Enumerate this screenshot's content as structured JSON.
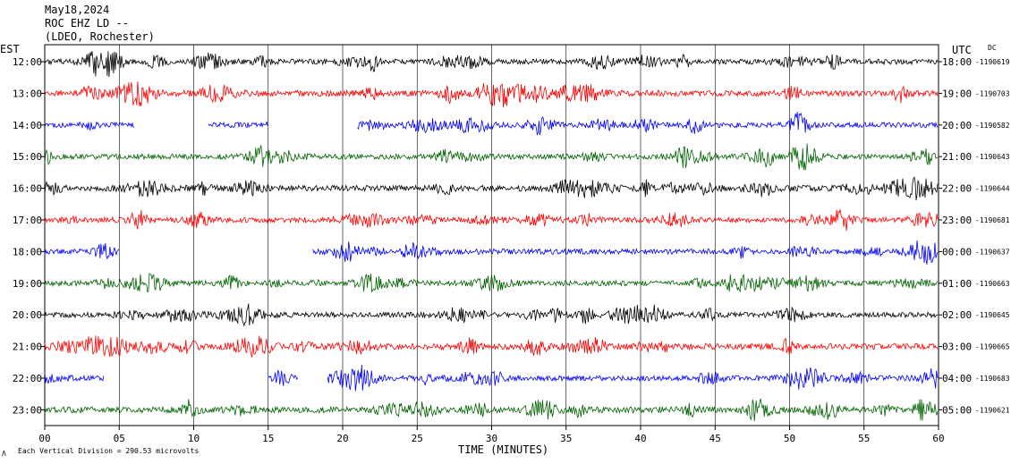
{
  "header": {
    "date": "May18,2024",
    "station": "ROC EHZ LD --",
    "network": "(LDEO, Rochester)"
  },
  "left_axis_title": "EST",
  "right_axis_title": "UTC",
  "dc_label": "DC",
  "footnote": "Each Vertical Division = 290.53 microvolts",
  "footnote_mark": "Λ",
  "colors": {
    "black": "#000000",
    "red": "#ff0000",
    "blue": "#0000ff",
    "green": "#006400"
  },
  "chart_data": {
    "type": "line",
    "xlabel": "TIME (MINUTES)",
    "xlim": [
      0,
      60
    ],
    "x_ticks": [
      "00",
      "05",
      "10",
      "15",
      "20",
      "25",
      "30",
      "35",
      "40",
      "45",
      "50",
      "55",
      "60"
    ],
    "grid": true,
    "rows": [
      {
        "est": "12:00",
        "utc": "18:00",
        "dc": "-1190619",
        "color": "#000000",
        "segments": [
          [
            0,
            60
          ]
        ],
        "amplitude": 0.7
      },
      {
        "est": "13:00",
        "utc": "19:00",
        "dc": "-1190703",
        "color": "#ff0000",
        "segments": [
          [
            0,
            60
          ]
        ],
        "amplitude": 0.8
      },
      {
        "est": "14:00",
        "utc": "20:00",
        "dc": "-1190582",
        "color": "#0000ff",
        "segments": [
          [
            0,
            6
          ],
          [
            11,
            15
          ],
          [
            21,
            60
          ]
        ],
        "amplitude": 0.7
      },
      {
        "est": "15:00",
        "utc": "21:00",
        "dc": "-1190643",
        "color": "#006400",
        "segments": [
          [
            0,
            60
          ]
        ],
        "amplitude": 0.7
      },
      {
        "est": "16:00",
        "utc": "22:00",
        "dc": "-1190644",
        "color": "#000000",
        "segments": [
          [
            0,
            60
          ]
        ],
        "amplitude": 0.8
      },
      {
        "est": "17:00",
        "utc": "23:00",
        "dc": "-1190681",
        "color": "#ff0000",
        "segments": [
          [
            0,
            60
          ]
        ],
        "amplitude": 0.7
      },
      {
        "est": "18:00",
        "utc": "00:00",
        "dc": "-1190637",
        "color": "#0000ff",
        "segments": [
          [
            0,
            5
          ],
          [
            18,
            60
          ]
        ],
        "amplitude": 0.7
      },
      {
        "est": "19:00",
        "utc": "01:00",
        "dc": "-1190663",
        "color": "#006400",
        "segments": [
          [
            0,
            60
          ]
        ],
        "amplitude": 0.7
      },
      {
        "est": "20:00",
        "utc": "02:00",
        "dc": "-1190645",
        "color": "#000000",
        "segments": [
          [
            0,
            60
          ]
        ],
        "amplitude": 0.7
      },
      {
        "est": "21:00",
        "utc": "03:00",
        "dc": "-1190665",
        "color": "#ff0000",
        "segments": [
          [
            0,
            60
          ]
        ],
        "amplitude": 0.8
      },
      {
        "est": "22:00",
        "utc": "04:00",
        "dc": "-1190683",
        "color": "#0000ff",
        "segments": [
          [
            0,
            4
          ],
          [
            15,
            17
          ],
          [
            19,
            60
          ]
        ],
        "amplitude": 0.7
      },
      {
        "est": "23:00",
        "utc": "05:00",
        "dc": "-1190621",
        "color": "#006400",
        "segments": [
          [
            0,
            60
          ]
        ],
        "amplitude": 0.8
      }
    ]
  }
}
